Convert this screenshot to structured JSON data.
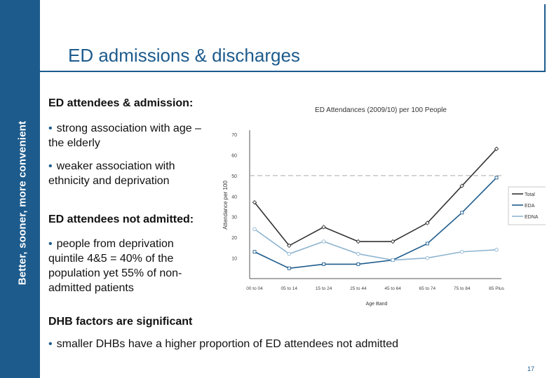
{
  "sidebar": {
    "text": "Better, sooner, more convenient"
  },
  "header": {
    "title": "ED admissions & discharges"
  },
  "content": {
    "h1": "ED attendees & admission:",
    "b1": "strong association with age – the elderly",
    "b2": "weaker association with ethnicity and deprivation",
    "h2": "ED attendees not admitted:",
    "b3": "people from deprivation quintile 4&5 = 40% of the population yet 55% of non-admitted patients",
    "h3": "DHB factors are significant",
    "b4": "smaller DHBs have a higher proportion of ED attendees not admitted"
  },
  "page_number": "17",
  "colors": {
    "brand": "#1d5b8c",
    "total": "#333333",
    "eda": "#1d5b8c",
    "edna": "#8fb5d0"
  },
  "chart_data": {
    "type": "line",
    "title": "ED Attendances (2009/10) per 100 People",
    "xlabel": "Age Band",
    "ylabel": "Attendance per 100",
    "categories": [
      "00 to 04",
      "05 to 14",
      "15 to 24",
      "25 to 44",
      "45 to 64",
      "65 to 74",
      "75 to 84",
      "85 Plus"
    ],
    "ylim": [
      0,
      70
    ],
    "yticks": [
      10,
      20,
      30,
      40,
      50,
      60,
      70
    ],
    "reference_line": 50,
    "series": [
      {
        "name": "Total",
        "values": [
          37,
          16,
          25,
          18,
          18,
          27,
          45,
          63
        ]
      },
      {
        "name": "EDA",
        "values": [
          13,
          5,
          7,
          7,
          9,
          17,
          32,
          49
        ]
      },
      {
        "name": "EDNA",
        "values": [
          24,
          12,
          18,
          12,
          9,
          10,
          13,
          14
        ]
      }
    ]
  }
}
